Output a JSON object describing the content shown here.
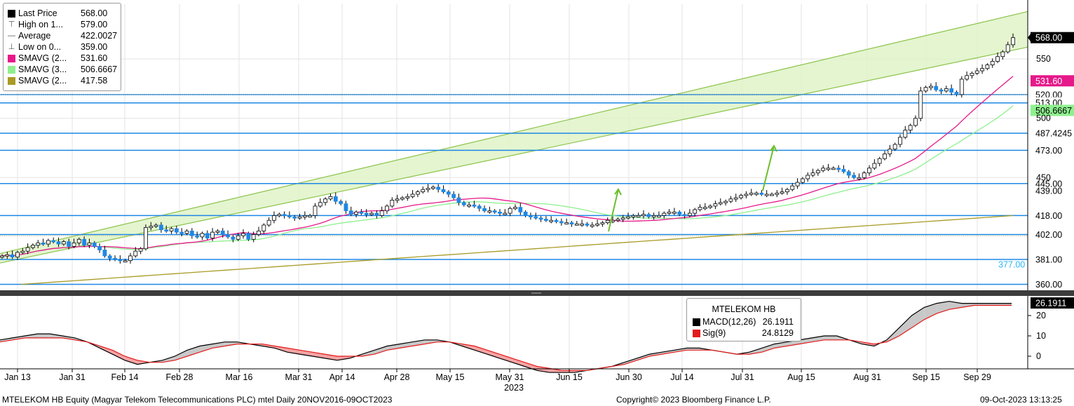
{
  "legend": {
    "items": [
      {
        "label": "Last Price",
        "value": "568.00",
        "swatch": "#000000",
        "kind": "box"
      },
      {
        "label": "High on 1...",
        "value": "579.00",
        "swatch": "",
        "kind": "high"
      },
      {
        "label": "Average",
        "value": "422.0027",
        "swatch": "",
        "kind": "avg"
      },
      {
        "label": "Low on 0...",
        "value": "359.00",
        "swatch": "",
        "kind": "low"
      },
      {
        "label": "SMAVG (2...",
        "value": "531.60",
        "swatch": "#e6198a",
        "kind": "box"
      },
      {
        "label": "SMAVG (3...",
        "value": "506.6667",
        "swatch": "#8ef08e",
        "kind": "box"
      },
      {
        "label": "SMAVG (2...",
        "value": "417.58",
        "swatch": "#a89a24",
        "kind": "box"
      }
    ]
  },
  "macd_legend": {
    "title": "MTELEKOM HB",
    "items": [
      {
        "label": "MACD(12,26)",
        "value": "26.1911",
        "swatch": "#000000"
      },
      {
        "label": "Sig(9)",
        "value": "24.8129",
        "swatch": "#e31a1a"
      }
    ]
  },
  "footer": {
    "left": "MTELEKOM HB Equity (Magyar Telekom Telecommunications PLC) mtel  Daily 20NOV2016-09OCT2023",
    "center": "Copyright© 2023 Bloomberg Finance L.P.",
    "right": "09-Oct-2023 13:13:25"
  },
  "chart_data": [
    {
      "type": "candlestick",
      "title": "",
      "x_tick_labels": [
        "Jan 13",
        "Jan 31",
        "Feb 14",
        "Feb 28",
        "Mar 16",
        "Mar 31",
        "Apr 14",
        "Apr 28",
        "May 15",
        "May 31",
        "Jun 15",
        "Jun 30",
        "Jul 14",
        "Jul 31",
        "Aug 15",
        "Aug 31",
        "Sep 15",
        "Sep 29"
      ],
      "x_year_label": "2023",
      "y_tick_labels": [
        "550",
        "500",
        "450"
      ],
      "ylim": [
        355,
        595
      ],
      "horizontal_levels": [
        {
          "value": 520,
          "label": "520.00",
          "color": "#1e88e5"
        },
        {
          "value": 513,
          "label": "513.00",
          "color": "#1e88e5"
        },
        {
          "value": 487.4245,
          "label": "487.4245",
          "color": "#1e88e5"
        },
        {
          "value": 473,
          "label": "473.00",
          "color": "#1e88e5"
        },
        {
          "value": 445,
          "label": "445.00",
          "color": "#1e88e5"
        },
        {
          "value": 418,
          "label": "418.00",
          "color": "#1e88e5"
        },
        {
          "value": 402,
          "label": "402.00",
          "color": "#1e88e5"
        },
        {
          "value": 381,
          "label": "381.00",
          "color": "#1e88e5"
        },
        {
          "value": 360,
          "label": "360.00",
          "color": "#1e88e5"
        }
      ],
      "extra_axis_labels": [
        {
          "value": 439,
          "label": "439.00"
        },
        {
          "value": 377,
          "label": "377.00",
          "color": "#29b6f6"
        }
      ],
      "last_price": {
        "value": 568,
        "label": "568.00"
      },
      "sma_labels": [
        {
          "value": 531.6,
          "label": "531.60",
          "color": "#e6198a"
        },
        {
          "value": 506.6667,
          "label": "506.6667",
          "color": "#8ef08e"
        }
      ],
      "channel": {
        "lower_start": 378,
        "lower_end": 560,
        "upper_start": 386,
        "upper_end": 590
      },
      "series_close": [
        384,
        385,
        383,
        387,
        388,
        391,
        393,
        395,
        394,
        397,
        396,
        394,
        396,
        392,
        395,
        398,
        393,
        395,
        392,
        389,
        384,
        382,
        381,
        380,
        380,
        384,
        388,
        390,
        408,
        409,
        410,
        406,
        405,
        407,
        404,
        403,
        405,
        401,
        400,
        403,
        399,
        404,
        405,
        402,
        400,
        398,
        401,
        403,
        398,
        402,
        405,
        410,
        414,
        418,
        419,
        418,
        417,
        416,
        417,
        418,
        418,
        426,
        429,
        432,
        434,
        430,
        428,
        422,
        419,
        421,
        420,
        419,
        420,
        418,
        422,
        426,
        431,
        432,
        433,
        434,
        436,
        438,
        440,
        441,
        442,
        440,
        438,
        436,
        433,
        429,
        427,
        427,
        426,
        424,
        422,
        422,
        421,
        420,
        420,
        424,
        425,
        421,
        418,
        417,
        416,
        415,
        414,
        414,
        413,
        412,
        412,
        411,
        411,
        411,
        410,
        410,
        411,
        412,
        414,
        414,
        415,
        416,
        417,
        418,
        418,
        419,
        417,
        418,
        418,
        420,
        421,
        421,
        419,
        418,
        420,
        423,
        425,
        425,
        426,
        428,
        429,
        430,
        432,
        433,
        435,
        436,
        437,
        437,
        436,
        436,
        436,
        437,
        438,
        440,
        443,
        446,
        449,
        452,
        454,
        456,
        458,
        458,
        458,
        457,
        455,
        452,
        450,
        450,
        454,
        458,
        462,
        466,
        470,
        474,
        478,
        484,
        490,
        494,
        500,
        523,
        526,
        527,
        524,
        523,
        525,
        522,
        520,
        533,
        536,
        538,
        540,
        542,
        545,
        548,
        552,
        556,
        562,
        568
      ],
      "sma_slow": [
        360,
        361,
        362,
        363,
        364,
        365,
        366,
        367,
        368,
        369,
        370,
        371,
        372,
        373,
        374,
        375,
        376,
        377,
        378,
        379,
        380,
        381,
        382,
        383,
        384,
        385,
        386,
        387,
        388,
        389,
        390,
        391,
        392,
        393,
        394,
        395,
        396,
        397,
        398,
        399,
        400,
        401,
        402,
        403,
        404,
        405,
        406,
        407,
        408,
        409,
        410,
        411,
        412,
        413,
        414,
        415,
        416,
        417,
        418
      ],
      "macd": [
        8,
        9,
        10,
        11,
        11,
        10,
        9,
        7,
        4,
        1,
        -2,
        -4,
        -3,
        -2,
        0,
        3,
        5,
        6,
        7,
        7,
        6,
        5,
        4,
        2,
        1,
        0,
        -1,
        -2,
        -1,
        1,
        3,
        5,
        6,
        7,
        8,
        8,
        7,
        5,
        3,
        1,
        -1,
        -3,
        -5,
        -7,
        -8,
        -8,
        -8,
        -7,
        -6,
        -5,
        -3,
        -1,
        1,
        2,
        3,
        4,
        4,
        3,
        2,
        1,
        2,
        4,
        6,
        7,
        8,
        9,
        10,
        10,
        8,
        6,
        5,
        8,
        14,
        20,
        24,
        26,
        27,
        26,
        26,
        26,
        26,
        26
      ],
      "signal": [
        7,
        8,
        9,
        9,
        9,
        9,
        8,
        7,
        5,
        3,
        0,
        -2,
        -3,
        -3,
        -2,
        0,
        2,
        4,
        5,
        6,
        6,
        6,
        5,
        4,
        3,
        2,
        1,
        0,
        0,
        0,
        1,
        3,
        4,
        5,
        6,
        7,
        7,
        6,
        5,
        3,
        1,
        -1,
        -3,
        -5,
        -6,
        -7,
        -7,
        -7,
        -6,
        -5,
        -4,
        -2,
        0,
        1,
        2,
        3,
        3,
        3,
        2,
        1,
        1,
        2,
        4,
        5,
        6,
        7,
        8,
        8,
        8,
        7,
        6,
        7,
        10,
        14,
        18,
        21,
        23,
        24,
        25,
        25,
        25,
        25
      ]
    },
    {
      "type": "line",
      "title": "MTELEKOM HB",
      "y_tick_labels": [
        "20",
        "10",
        "0"
      ],
      "last_macd_label": "26.1911"
    }
  ]
}
